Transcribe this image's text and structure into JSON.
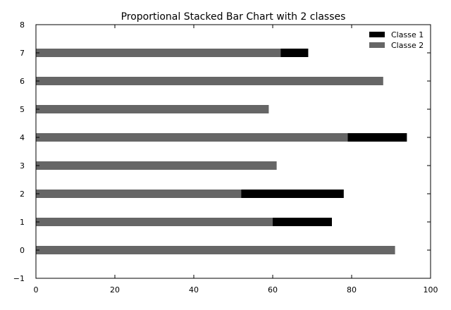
{
  "chart_data": {
    "type": "bar",
    "orientation": "horizontal",
    "stacked": true,
    "title": "Proportional Stacked Bar Chart with 2 classes",
    "xlabel": "",
    "ylabel": "",
    "xlim": [
      0,
      100
    ],
    "ylim": [
      -1,
      8
    ],
    "x_ticks": [
      0,
      20,
      40,
      60,
      80,
      100
    ],
    "y_ticks": [
      -1,
      0,
      1,
      2,
      3,
      4,
      5,
      6,
      7,
      8
    ],
    "categories": [
      0,
      1,
      2,
      3,
      4,
      5,
      6,
      7
    ],
    "series": [
      {
        "name": "Classe 2",
        "color": "#666666",
        "values": [
          91,
          60,
          52,
          61,
          79,
          59,
          88,
          62
        ]
      },
      {
        "name": "Classe 1",
        "color": "#000000",
        "values": [
          0,
          15,
          26,
          0,
          15,
          0,
          0,
          7
        ]
      }
    ],
    "grid": false,
    "legend_position": "top-right"
  }
}
